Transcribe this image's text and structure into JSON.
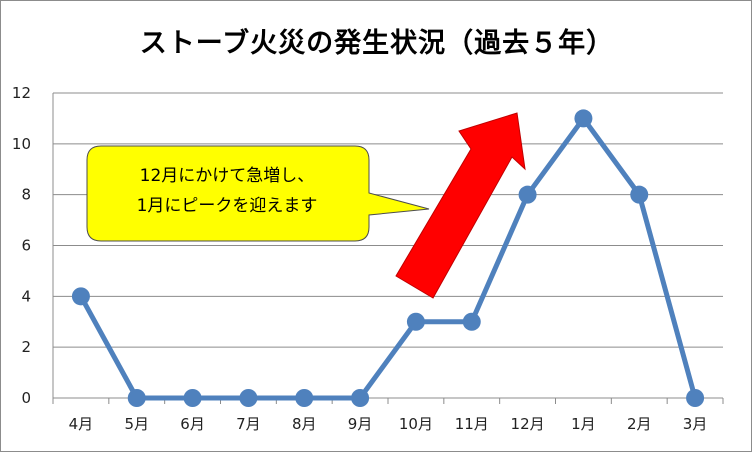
{
  "chart_data": {
    "type": "line",
    "title": "ストーブ火災の発生状況（過去５年）",
    "xlabel": "",
    "ylabel": "",
    "categories": [
      "4月",
      "5月",
      "6月",
      "7月",
      "8月",
      "9月",
      "10月",
      "11月",
      "12月",
      "1月",
      "2月",
      "3月"
    ],
    "series": [
      {
        "values": [
          4,
          0,
          0,
          0,
          0,
          0,
          3,
          3,
          8,
          11,
          8,
          0
        ]
      }
    ],
    "ylim": [
      0,
      12
    ],
    "yticks": [
      "0",
      "2",
      "4",
      "6",
      "8",
      "10",
      "12"
    ],
    "grid": true,
    "legend": "none",
    "line_color": "#4f81bd",
    "annotation": {
      "lines": [
        "12月にかけて急増し、",
        "1月にピークを迎えます"
      ],
      "fill": "#ffff00",
      "arrow_color": "#ff0000"
    }
  }
}
